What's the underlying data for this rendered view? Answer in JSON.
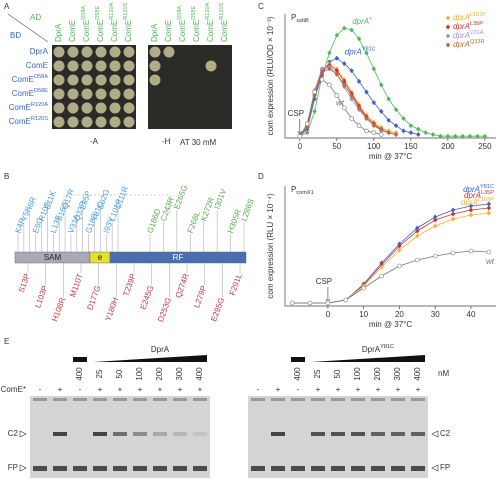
{
  "panel_a": {
    "label": "A",
    "ad": "AD",
    "bd": "BD",
    "strains": [
      {
        "name": "DprA"
      },
      {
        "name": "ComE"
      },
      {
        "name": "ComE",
        "sup": "D58A"
      },
      {
        "name": "ComE",
        "sup": "D58E"
      },
      {
        "name": "ComE",
        "sup": "R120A"
      },
      {
        "name": "ComE",
        "sup": "R120S"
      }
    ],
    "caption_left": "-A",
    "caption_right": "-H",
    "caption_right_note": "AT 30 mM"
  },
  "panel_b": {
    "label": "B",
    "domains": [
      "SAM",
      "e",
      "RF"
    ],
    "top_blue": [
      "K4R",
      "Y5K",
      "I6R",
      "E9G",
      "R10S",
      "E11K",
      "L13F",
      "S16G",
      "Q17R",
      "V31A",
      "Q33R",
      "L35P",
      "G18S",
      "Y81C",
      "E82G",
      "I93V",
      "L101P",
      "C111R"
    ],
    "top_green": [
      "G186D",
      "C243R",
      "E265G",
      "F268L",
      "K272R",
      "I301V",
      "H305R",
      "L286S"
    ],
    "bottom_red": [
      "S13P",
      "L103P",
      "H108R",
      "M110T",
      "D177G",
      "Y180H",
      "T239P",
      "E245G",
      "D253G",
      "Q274R",
      "L279P",
      "E295G",
      "F291L"
    ]
  },
  "panel_e": {
    "label": "E",
    "protein_left": "DprA",
    "protein_right": "DprA",
    "protein_right_sup": "Y81C",
    "come": "ComE*",
    "come_signs": [
      "-",
      "+",
      "-",
      "+",
      "+",
      "+",
      "+",
      "+",
      "+"
    ],
    "concentrations": [
      "400",
      "25",
      "50",
      "100",
      "200",
      "300",
      "400"
    ],
    "unit": "nM",
    "c2": "C2",
    "fp": "FP"
  },
  "chart_data": [
    {
      "type": "line",
      "panel_label": "C",
      "title": "P",
      "title_sub": "ssbB",
      "x_label": "min @ 37°C",
      "y_label": "com expression (RLU/OD × 10⁻³)",
      "x": [
        0,
        10,
        20,
        30,
        40,
        50,
        60,
        70,
        80,
        90,
        100,
        110,
        120,
        130,
        140,
        150,
        160,
        170,
        180,
        190,
        200,
        210,
        220,
        230,
        240,
        250
      ],
      "xlim": [
        -20,
        265
      ],
      "xticks": [
        0,
        50,
        100,
        150,
        200,
        250
      ],
      "ylim": [
        0,
        7
      ],
      "annotation": {
        "text": "CSP",
        "x": 0
      },
      "inline_at": "peak",
      "series": [
        {
          "name": "dprA",
          "sup": "+",
          "color": "#4fb857",
          "marker": "diamond",
          "inline": true,
          "values": [
            0.1,
            0.3,
            1.5,
            3.5,
            4.8,
            5.8,
            6.2,
            6.1,
            5.6,
            4.8,
            3.9,
            3.0,
            2.2,
            1.6,
            1.1,
            0.7,
            0.5,
            0.3,
            0.2,
            0.1,
            0.1,
            0.1,
            0.1,
            0.1,
            0.1,
            0.1
          ]
        },
        {
          "name": "dprA",
          "sup": "Y81C",
          "color": "#3a64c8",
          "marker": "diamond",
          "inline": true,
          "values": [
            0.1,
            0.5,
            2.2,
            3.6,
            4.3,
            4.5,
            4.2,
            3.8,
            3.2,
            2.6,
            2.0,
            1.5,
            1.0,
            0.7,
            0.4,
            0.3,
            0.2,
            null,
            null,
            null,
            null,
            null,
            null,
            null,
            null,
            null
          ]
        },
        {
          "name": "dprA",
          "sup": "L103P",
          "color": "#f2b233",
          "marker": "diamond",
          "legend": true,
          "values": [
            0.1,
            0.6,
            2.6,
            3.9,
            4.2,
            3.9,
            3.3,
            2.6,
            1.9,
            1.3,
            0.9,
            0.6,
            0.4,
            0.3,
            null,
            null,
            null,
            null,
            null,
            null,
            null,
            null,
            null,
            null,
            null,
            null
          ]
        },
        {
          "name": "dprA",
          "sup": "L35P",
          "color": "#c8343a",
          "marker": "diamond",
          "legend": true,
          "values": [
            0.1,
            0.6,
            2.5,
            3.8,
            4.1,
            3.8,
            3.2,
            2.5,
            1.8,
            1.2,
            0.8,
            0.5,
            0.3,
            0.2,
            null,
            null,
            null,
            null,
            null,
            null,
            null,
            null,
            null,
            null,
            null,
            null
          ]
        },
        {
          "name": "dprA",
          "sup": "V31A",
          "color": "#9f8fc8",
          "marker": "diamond",
          "legend": true,
          "values": [
            0.1,
            0.7,
            2.7,
            3.9,
            4.0,
            3.6,
            2.9,
            2.2,
            1.6,
            1.1,
            0.7,
            0.4,
            0.3,
            0.2,
            null,
            null,
            null,
            null,
            null,
            null,
            null,
            null,
            null,
            null,
            null,
            null
          ]
        },
        {
          "name": "dprA",
          "sup": "Q33R",
          "color": "#b86a3c",
          "marker": "diamond",
          "legend": true,
          "values": [
            0.1,
            0.6,
            2.4,
            3.7,
            3.9,
            3.6,
            3.0,
            2.4,
            1.7,
            1.1,
            0.7,
            0.5,
            0.3,
            0.2,
            null,
            null,
            null,
            null,
            null,
            null,
            null,
            null,
            null,
            null,
            null,
            null
          ]
        },
        {
          "name": "wt",
          "color": "#777777",
          "marker": "circle",
          "open": true,
          "inline": true,
          "values": [
            0.1,
            0.8,
            2.6,
            3.3,
            3.0,
            2.4,
            1.7,
            1.1,
            0.7,
            0.4,
            0.3,
            0.2,
            null,
            null,
            null,
            null,
            null,
            null,
            null,
            null,
            null,
            null,
            null,
            null,
            null,
            null
          ]
        }
      ]
    },
    {
      "type": "line",
      "panel_label": "D",
      "title": "P",
      "title_sub": "comX1",
      "x_label": "min @ 37°C",
      "y_label": "com expression (RLU × 10⁻⁴)",
      "x": [
        -10,
        -5,
        0,
        5,
        10,
        15,
        20,
        25,
        30,
        35,
        40,
        45
      ],
      "xlim": [
        -12,
        47
      ],
      "xticks": [
        0,
        10,
        20,
        30,
        40
      ],
      "ylim": [
        0,
        12
      ],
      "annotation": {
        "text": "CSP",
        "x": 0
      },
      "inline_at": "end",
      "series": [
        {
          "name": "dprA",
          "sup": "Y81C",
          "color": "#3a64c8",
          "marker": "diamond",
          "inline": true,
          "values": [
            0.3,
            0.3,
            0.3,
            0.6,
            2.2,
            4.3,
            6.2,
            7.8,
            8.9,
            9.6,
            10.0,
            10.2
          ]
        },
        {
          "name": "dprA",
          "sup": "L35P",
          "color": "#c8343a",
          "marker": "diamond",
          "inline": true,
          "values": [
            0.3,
            0.3,
            0.3,
            0.6,
            2.1,
            4.1,
            6.0,
            7.5,
            8.6,
            9.2,
            9.6,
            9.8
          ]
        },
        {
          "name": "dprA",
          "sup": "L103P",
          "color": "#f2b233",
          "marker": "diamond",
          "inline": true,
          "values": [
            0.3,
            0.3,
            0.3,
            0.6,
            2.0,
            3.9,
            5.6,
            7.0,
            8.0,
            8.7,
            9.1,
            9.3
          ]
        },
        {
          "name": "wt",
          "color": "#777777",
          "marker": "circle",
          "open": true,
          "inline": true,
          "values": [
            0.3,
            0.3,
            0.3,
            0.6,
            1.8,
            3.0,
            4.0,
            4.6,
            5.0,
            5.3,
            5.5,
            5.4
          ]
        }
      ]
    }
  ]
}
